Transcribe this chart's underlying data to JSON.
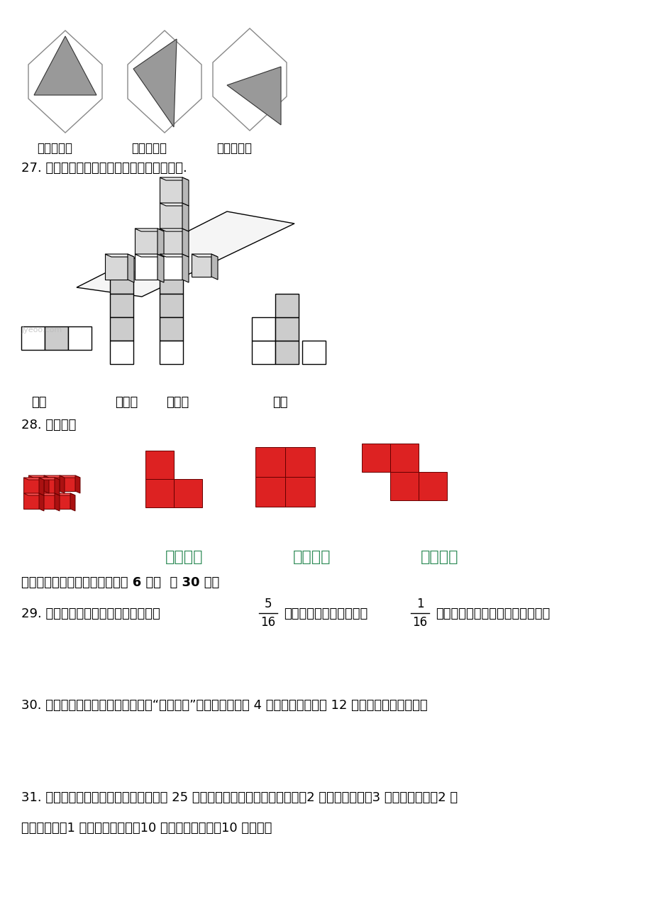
{
  "bg_color": "#ffffff",
  "title_color": "#2e8b57",
  "text_color": "#000000",
  "watermark": "jyeoo.com",
  "section_q27": "27. 他们看到的形状分别是什么？请你连一连.",
  "section_q28": "28. 连一连。",
  "section_six_header": "六、生活问题我能解决。（每题 6 分，  共 30 分）",
  "q29_part1": "29. 明明看一本书，第二天看了全书的",
  "q29_frac1_num": "5",
  "q29_frac1_den": "16",
  "q29_part2": "，比第一天多看了全书的",
  "q29_frac2_num": "1",
  "q29_frac2_den": "16",
  "q29_part3": "，还剩下全书的几分之几没有看？",
  "q30": "30. 超市开展促销活动，所有的牛奶“买五送一”。一种牛奶每盘 4 元，姐姐一次买了 12 盘，一共花了多少元？",
  "q31_line1": "31. 王虹从早上起床到上学前这段时间为 25 分钟，他要做以下几件事：起床（2 分钟）、洗脸（3 分钟）、刷牙（2 分",
  "q31_line2": "钟）、刷锅（1 分钟）、煮鸡蛋（10 分钟）、吃早点（10 分钟）。",
  "labels_row1": [
    "正面",
    "左侧面",
    "右侧面",
    "上面"
  ],
  "labels_views": [
    "从正面看",
    "从左面看",
    "从上面看"
  ],
  "label_right_tri": "直角三角形",
  "label_obtuse_tri": "钗角三角形",
  "label_acute_tri": "锐角三角形"
}
